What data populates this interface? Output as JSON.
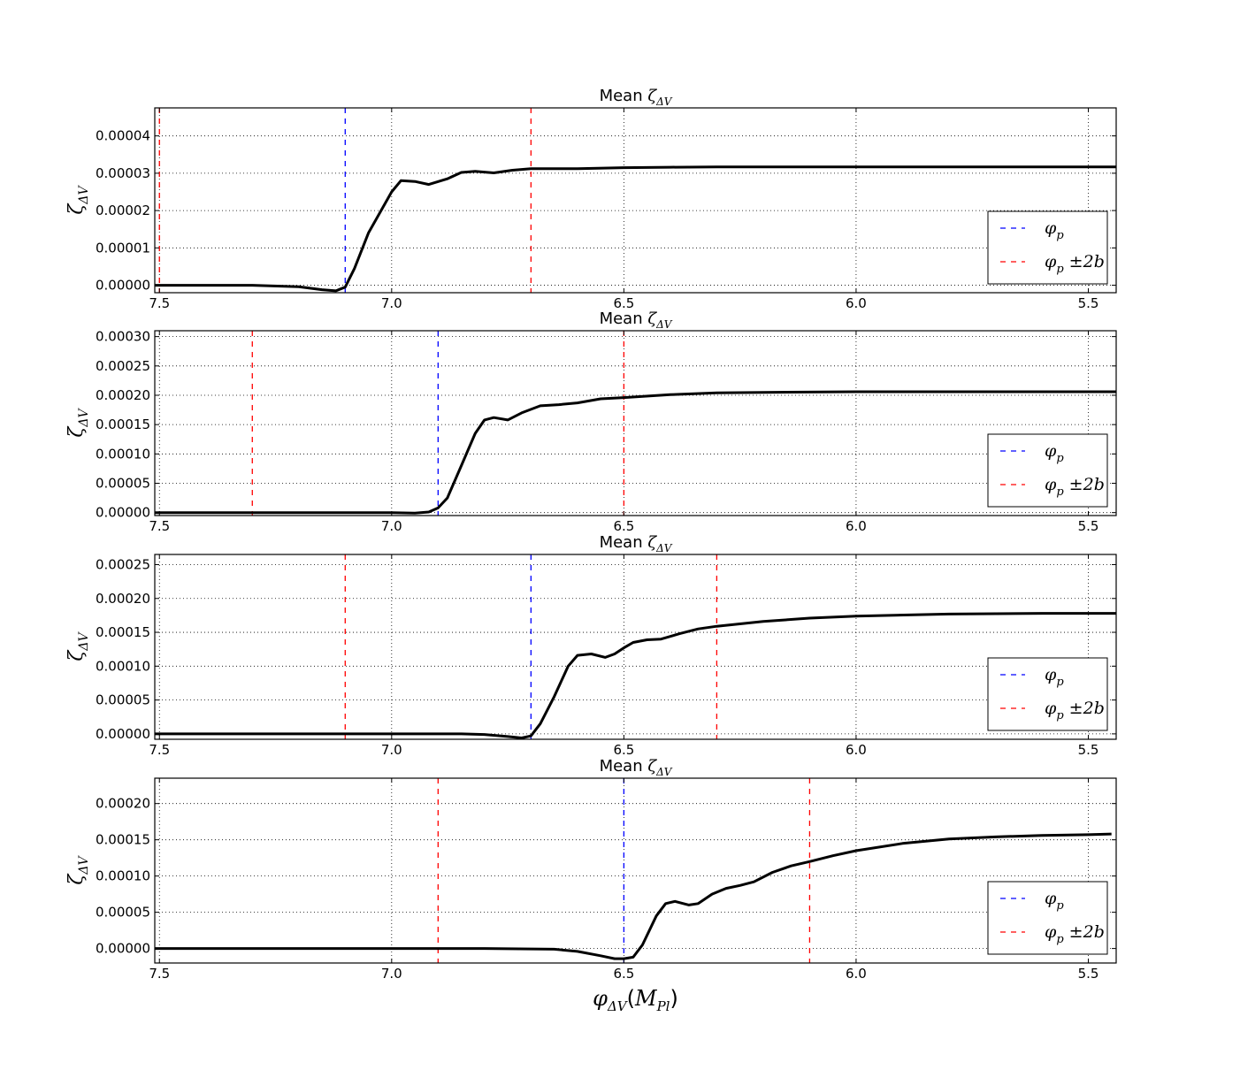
{
  "chart_data": [
    {
      "type": "line",
      "title": "Mean ζ_ΔV",
      "title_prefix": "Mean",
      "title_symbol": "ζ",
      "title_subscript": "ΔV",
      "ylabel": "ζ_ΔV",
      "xlabel": "φ_ΔV(M_Pl)",
      "x_reversed": true,
      "xlim": [
        7.51,
        5.44
      ],
      "ylim": [
        -2e-06,
        4.75e-05
      ],
      "grid": true,
      "xticks": [
        "7.5",
        "7.0",
        "6.5",
        "6.0",
        "5.5"
      ],
      "yticks": [
        "0.00000",
        "0.00001",
        "0.00002",
        "0.00003",
        "0.00004"
      ],
      "ytick_values": [
        0,
        1e-05,
        2e-05,
        3e-05,
        4e-05
      ],
      "vlines": [
        {
          "x": 7.1,
          "color": "#0000ff",
          "label": "φ_p"
        },
        {
          "x": 7.5,
          "color": "#ff0000",
          "label": "φ_p ±2b"
        },
        {
          "x": 6.7,
          "color": "#ff0000",
          "label": "φ_p ±2b"
        }
      ],
      "series": [
        {
          "x": [
            7.51,
            7.3,
            7.2,
            7.15,
            7.12,
            7.1,
            7.08,
            7.05,
            7.0,
            6.98,
            6.95,
            6.92,
            6.88,
            6.85,
            6.82,
            6.78,
            6.74,
            6.7,
            6.6,
            6.5,
            6.4,
            6.3,
            6.2,
            6.0,
            5.8,
            5.6,
            5.44
          ],
          "y": [
            0,
            0,
            -4e-07,
            -1.2e-06,
            -1.5e-06,
            -5e-07,
            4.5e-06,
            1.4e-05,
            2.5e-05,
            2.8e-05,
            2.78e-05,
            2.7e-05,
            2.85e-05,
            3.02e-05,
            3.05e-05,
            3.01e-05,
            3.08e-05,
            3.12e-05,
            3.12e-05,
            3.15e-05,
            3.16e-05,
            3.17e-05,
            3.17e-05,
            3.17e-05,
            3.17e-05,
            3.17e-05,
            3.17e-05
          ]
        }
      ]
    },
    {
      "type": "line",
      "title": "Mean ζ_ΔV",
      "title_prefix": "Mean",
      "title_symbol": "ζ",
      "title_subscript": "ΔV",
      "ylabel": "ζ_ΔV",
      "xlabel": "φ_ΔV(M_Pl)",
      "x_reversed": true,
      "xlim": [
        7.51,
        5.44
      ],
      "ylim": [
        -5e-06,
        0.00031
      ],
      "grid": true,
      "xticks": [
        "7.5",
        "7.0",
        "6.5",
        "6.0",
        "5.5"
      ],
      "yticks": [
        "0.00000",
        "0.00005",
        "0.00010",
        "0.00015",
        "0.00020",
        "0.00025",
        "0.00030"
      ],
      "ytick_values": [
        0,
        5e-05,
        0.0001,
        0.00015,
        0.0002,
        0.00025,
        0.0003
      ],
      "vlines": [
        {
          "x": 6.9,
          "color": "#0000ff",
          "label": "φ_p"
        },
        {
          "x": 7.3,
          "color": "#ff0000",
          "label": "φ_p ±2b"
        },
        {
          "x": 6.5,
          "color": "#ff0000",
          "label": "φ_p ±2b"
        }
      ],
      "series": [
        {
          "x": [
            7.51,
            7.2,
            7.0,
            6.95,
            6.92,
            6.9,
            6.88,
            6.85,
            6.82,
            6.8,
            6.78,
            6.75,
            6.72,
            6.68,
            6.64,
            6.6,
            6.55,
            6.5,
            6.4,
            6.3,
            6.2,
            6.0,
            5.8,
            5.6,
            5.44
          ],
          "y": [
            0,
            0,
            0,
            -1e-06,
            1e-06,
            8e-06,
            2.5e-05,
            8e-05,
            0.000135,
            0.000158,
            0.000162,
            0.000158,
            0.00017,
            0.000182,
            0.000184,
            0.000187,
            0.000194,
            0.000196,
            0.000201,
            0.000204,
            0.000205,
            0.000206,
            0.000206,
            0.000206,
            0.000206
          ]
        }
      ]
    },
    {
      "type": "line",
      "title": "Mean ζ_ΔV",
      "title_prefix": "Mean",
      "title_symbol": "ζ",
      "title_subscript": "ΔV",
      "ylabel": "ζ_ΔV",
      "xlabel": "φ_ΔV(M_Pl)",
      "x_reversed": true,
      "xlim": [
        7.51,
        5.44
      ],
      "ylim": [
        -8e-06,
        0.000265
      ],
      "grid": true,
      "xticks": [
        "7.5",
        "7.0",
        "6.5",
        "6.0",
        "5.5"
      ],
      "yticks": [
        "0.00000",
        "0.00005",
        "0.00010",
        "0.00015",
        "0.00020",
        "0.00025"
      ],
      "ytick_values": [
        0,
        5e-05,
        0.0001,
        0.00015,
        0.0002,
        0.00025
      ],
      "vlines": [
        {
          "x": 6.7,
          "color": "#0000ff",
          "label": "φ_p"
        },
        {
          "x": 7.1,
          "color": "#ff0000",
          "label": "φ_p ±2b"
        },
        {
          "x": 6.3,
          "color": "#ff0000",
          "label": "φ_p ±2b"
        }
      ],
      "series": [
        {
          "x": [
            7.51,
            7.0,
            6.85,
            6.8,
            6.75,
            6.72,
            6.7,
            6.68,
            6.65,
            6.62,
            6.6,
            6.57,
            6.54,
            6.52,
            6.5,
            6.48,
            6.45,
            6.42,
            6.38,
            6.34,
            6.3,
            6.2,
            6.1,
            6.0,
            5.8,
            5.6,
            5.44
          ],
          "y": [
            0,
            0,
            0,
            -1e-06,
            -4e-06,
            -6e-06,
            -3e-06,
            1.5e-05,
            5.5e-05,
            0.0001,
            0.000116,
            0.000118,
            0.000113,
            0.000118,
            0.000127,
            0.000135,
            0.000139,
            0.00014,
            0.000148,
            0.000155,
            0.000159,
            0.000166,
            0.000171,
            0.000174,
            0.000177,
            0.000178,
            0.000178
          ]
        }
      ]
    },
    {
      "type": "line",
      "title": "Mean ζ_ΔV",
      "title_prefix": "Mean",
      "title_symbol": "ζ",
      "title_subscript": "ΔV",
      "ylabel": "ζ_ΔV",
      "xlabel": "φ_ΔV(M_Pl)",
      "xlabel_prefix": "φ",
      "xlabel_subscript": "ΔV",
      "xlabel_paren_symbol": "M",
      "xlabel_paren_subscript": "Pl",
      "x_reversed": true,
      "xlim": [
        7.51,
        5.44
      ],
      "ylim": [
        -2e-05,
        0.000235
      ],
      "grid": true,
      "xticks": [
        "7.5",
        "7.0",
        "6.5",
        "6.0",
        "5.5"
      ],
      "yticks": [
        "0.00000",
        "0.00005",
        "0.00010",
        "0.00015",
        "0.00020"
      ],
      "ytick_values": [
        0,
        5e-05,
        0.0001,
        0.00015,
        0.0002
      ],
      "vlines": [
        {
          "x": 6.5,
          "color": "#0000ff",
          "label": "φ_p"
        },
        {
          "x": 6.9,
          "color": "#ff0000",
          "label": "φ_p ±2b"
        },
        {
          "x": 6.1,
          "color": "#ff0000",
          "label": "φ_p ±2b"
        }
      ],
      "series": [
        {
          "x": [
            7.51,
            6.8,
            6.65,
            6.6,
            6.55,
            6.52,
            6.5,
            6.48,
            6.46,
            6.43,
            6.41,
            6.39,
            6.36,
            6.34,
            6.31,
            6.28,
            6.25,
            6.22,
            6.18,
            6.14,
            6.1,
            6.05,
            6.0,
            5.9,
            5.8,
            5.7,
            5.6,
            5.5,
            5.45
          ],
          "y": [
            0,
            0,
            -1e-06,
            -4e-06,
            -1e-05,
            -1.4e-05,
            -1.4e-05,
            -1.2e-05,
            5e-06,
            4.5e-05,
            6.2e-05,
            6.5e-05,
            6e-05,
            6.2e-05,
            7.5e-05,
            8.3e-05,
            8.7e-05,
            9.2e-05,
            0.000105,
            0.000114,
            0.00012,
            0.000128,
            0.000135,
            0.000145,
            0.000151,
            0.000154,
            0.000156,
            0.000157,
            0.000158
          ]
        }
      ]
    }
  ],
  "legend": {
    "placement": "lower-right",
    "items": [
      {
        "symbol": "φ",
        "subscript": "p",
        "suffix": "",
        "color": "#0000ff"
      },
      {
        "symbol": "φ",
        "subscript": "p",
        "suffix": "±2b",
        "color": "#ff0000"
      }
    ]
  },
  "colors": {
    "curve": "#000000",
    "peak_line": "#0000ff",
    "width_line": "#ff0000",
    "grid": "#000000"
  }
}
